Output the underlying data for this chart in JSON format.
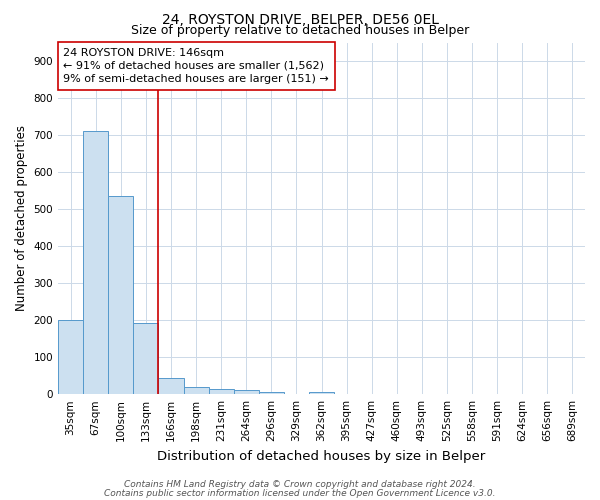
{
  "title": "24, ROYSTON DRIVE, BELPER, DE56 0EL",
  "subtitle": "Size of property relative to detached houses in Belper",
  "xlabel": "Distribution of detached houses by size in Belper",
  "ylabel": "Number of detached properties",
  "footnote1": "Contains HM Land Registry data © Crown copyright and database right 2024.",
  "footnote2": "Contains public sector information licensed under the Open Government Licence v3.0.",
  "categories": [
    "35sqm",
    "67sqm",
    "100sqm",
    "133sqm",
    "166sqm",
    "198sqm",
    "231sqm",
    "264sqm",
    "296sqm",
    "329sqm",
    "362sqm",
    "395sqm",
    "427sqm",
    "460sqm",
    "493sqm",
    "525sqm",
    "558sqm",
    "591sqm",
    "624sqm",
    "656sqm",
    "689sqm"
  ],
  "values": [
    200,
    710,
    535,
    193,
    43,
    20,
    15,
    10,
    7,
    0,
    7,
    0,
    0,
    0,
    0,
    0,
    0,
    0,
    0,
    0,
    0
  ],
  "bar_color": "#cce0f0",
  "bar_edge_color": "#5599cc",
  "vline_x": 3.5,
  "vline_color": "#cc0000",
  "annotation_text": "24 ROYSTON DRIVE: 146sqm\n← 91% of detached houses are smaller (1,562)\n9% of semi-detached houses are larger (151) →",
  "annotation_box_color": "#ffffff",
  "annotation_box_edge": "#cc0000",
  "ylim": [
    0,
    950
  ],
  "yticks": [
    0,
    100,
    200,
    300,
    400,
    500,
    600,
    700,
    800,
    900
  ],
  "background_color": "#ffffff",
  "grid_color": "#ccd9e8",
  "title_fontsize": 10,
  "subtitle_fontsize": 9,
  "xlabel_fontsize": 9.5,
  "ylabel_fontsize": 8.5,
  "tick_fontsize": 7.5,
  "annotation_fontsize": 8,
  "footnote_fontsize": 6.5
}
